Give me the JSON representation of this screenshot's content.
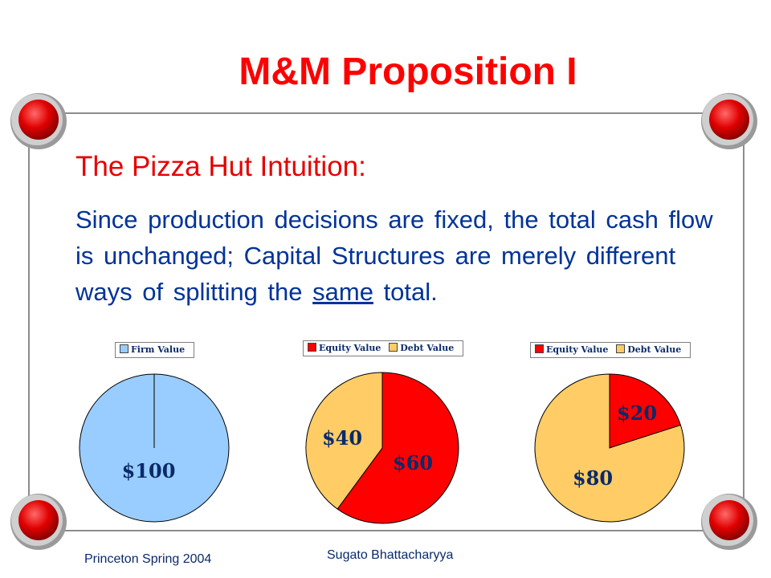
{
  "slide": {
    "title": "M&M Proposition I",
    "subtitle": "The Pizza Hut Intuition:",
    "body_before": "Since production decisions are fixed, the total cash flow is unchanged; Capital Structures are merely different ways of splitting the ",
    "body_underlined": "same",
    "body_after": " total."
  },
  "footer": {
    "left": "Princeton Spring 2004",
    "center": "Sugato Bhattacharyya"
  },
  "colors": {
    "title": "#ff0000",
    "body": "#003399",
    "firm": "#99ccff",
    "equity": "#ff0000",
    "debt": "#ffcc66"
  },
  "chart_data": [
    {
      "type": "pie",
      "legend": [
        "Firm Value"
      ],
      "slices": [
        {
          "name": "Firm Value",
          "value": 100,
          "label": "$100"
        }
      ]
    },
    {
      "type": "pie",
      "legend": [
        "Equity Value",
        "Debt Value"
      ],
      "slices": [
        {
          "name": "Equity Value",
          "value": 60,
          "label": "$60"
        },
        {
          "name": "Debt Value",
          "value": 40,
          "label": "$40"
        }
      ]
    },
    {
      "type": "pie",
      "legend": [
        "Equity Value",
        "Debt Value"
      ],
      "slices": [
        {
          "name": "Equity Value",
          "value": 20,
          "label": "$20"
        },
        {
          "name": "Debt Value",
          "value": 80,
          "label": "$80"
        }
      ]
    }
  ]
}
